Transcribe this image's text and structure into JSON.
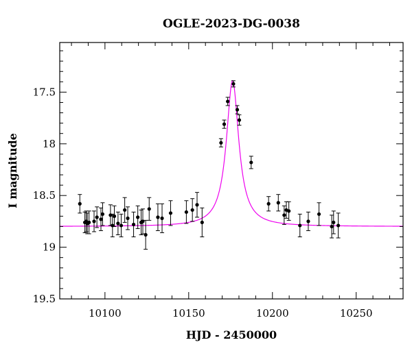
{
  "chart_data": {
    "type": "scatter",
    "title": "OGLE-2023-DG-0038",
    "xlabel": "HJD - 2450000",
    "ylabel": "I magnitude",
    "xlim": [
      10073,
      10278
    ],
    "ylim": [
      19.5,
      17.02
    ],
    "y_inverted": true,
    "grid": false,
    "x_ticks": [
      10100,
      10150,
      10200,
      10250
    ],
    "x_tick_labels": [
      "10100",
      "10150",
      "10200",
      "10250"
    ],
    "y_ticks": [
      17.5,
      18,
      18.5,
      19,
      19.5
    ],
    "y_tick_labels": [
      "17.5",
      "18",
      "18.5",
      "19",
      "19.5"
    ],
    "colors": {
      "points": "#000000",
      "model": "#ee00ee",
      "axes": "#000000"
    },
    "model": {
      "t0": 10176.2,
      "baseline": 18.8,
      "peak": 17.39,
      "width": 4.5
    },
    "series": [
      {
        "marker": "filled-circle-with-errorbars",
        "x": [
          10085,
          10088,
          10088.8,
          10089.5,
          10090.5,
          10093.5,
          10095.2,
          10097.6,
          10098.6,
          10103.3,
          10104.5,
          10105.6,
          10107.8,
          10109.7,
          10111.8,
          10113.6,
          10117.1,
          10119.6,
          10121.6,
          10122.6,
          10124.3,
          10126.4,
          10131.6,
          10134.1,
          10139.2,
          10148.6,
          10152.2,
          10155.0,
          10158.0,
          10169.3,
          10171.2,
          10173.3,
          10176.7,
          10179.0,
          10180.2,
          10187.3,
          10197.7,
          10203.5,
          10207.0,
          10208.3,
          10209.8,
          10216.4,
          10221.4,
          10227.8,
          10235.4,
          10236.5,
          10239.3
        ],
        "y": [
          18.58,
          18.76,
          18.75,
          18.77,
          18.76,
          18.75,
          18.71,
          18.73,
          18.68,
          18.69,
          18.79,
          18.7,
          18.77,
          18.79,
          18.64,
          18.72,
          18.78,
          18.71,
          18.76,
          18.75,
          18.88,
          18.63,
          18.71,
          18.72,
          18.67,
          18.66,
          18.64,
          18.59,
          18.76,
          17.99,
          17.81,
          17.59,
          17.42,
          17.67,
          17.77,
          18.18,
          18.58,
          18.57,
          18.69,
          18.64,
          18.65,
          18.79,
          18.75,
          18.68,
          18.8,
          18.76,
          18.79
        ],
        "yerr": [
          0.09,
          0.1,
          0.1,
          0.1,
          0.11,
          0.1,
          0.1,
          0.11,
          0.11,
          0.1,
          0.11,
          0.1,
          0.11,
          0.11,
          0.12,
          0.11,
          0.12,
          0.11,
          0.12,
          0.12,
          0.14,
          0.11,
          0.13,
          0.14,
          0.12,
          0.11,
          0.11,
          0.12,
          0.14,
          0.04,
          0.04,
          0.04,
          0.03,
          0.04,
          0.05,
          0.06,
          0.07,
          0.08,
          0.09,
          0.08,
          0.09,
          0.11,
          0.09,
          0.11,
          0.11,
          0.11,
          0.12
        ]
      }
    ]
  }
}
